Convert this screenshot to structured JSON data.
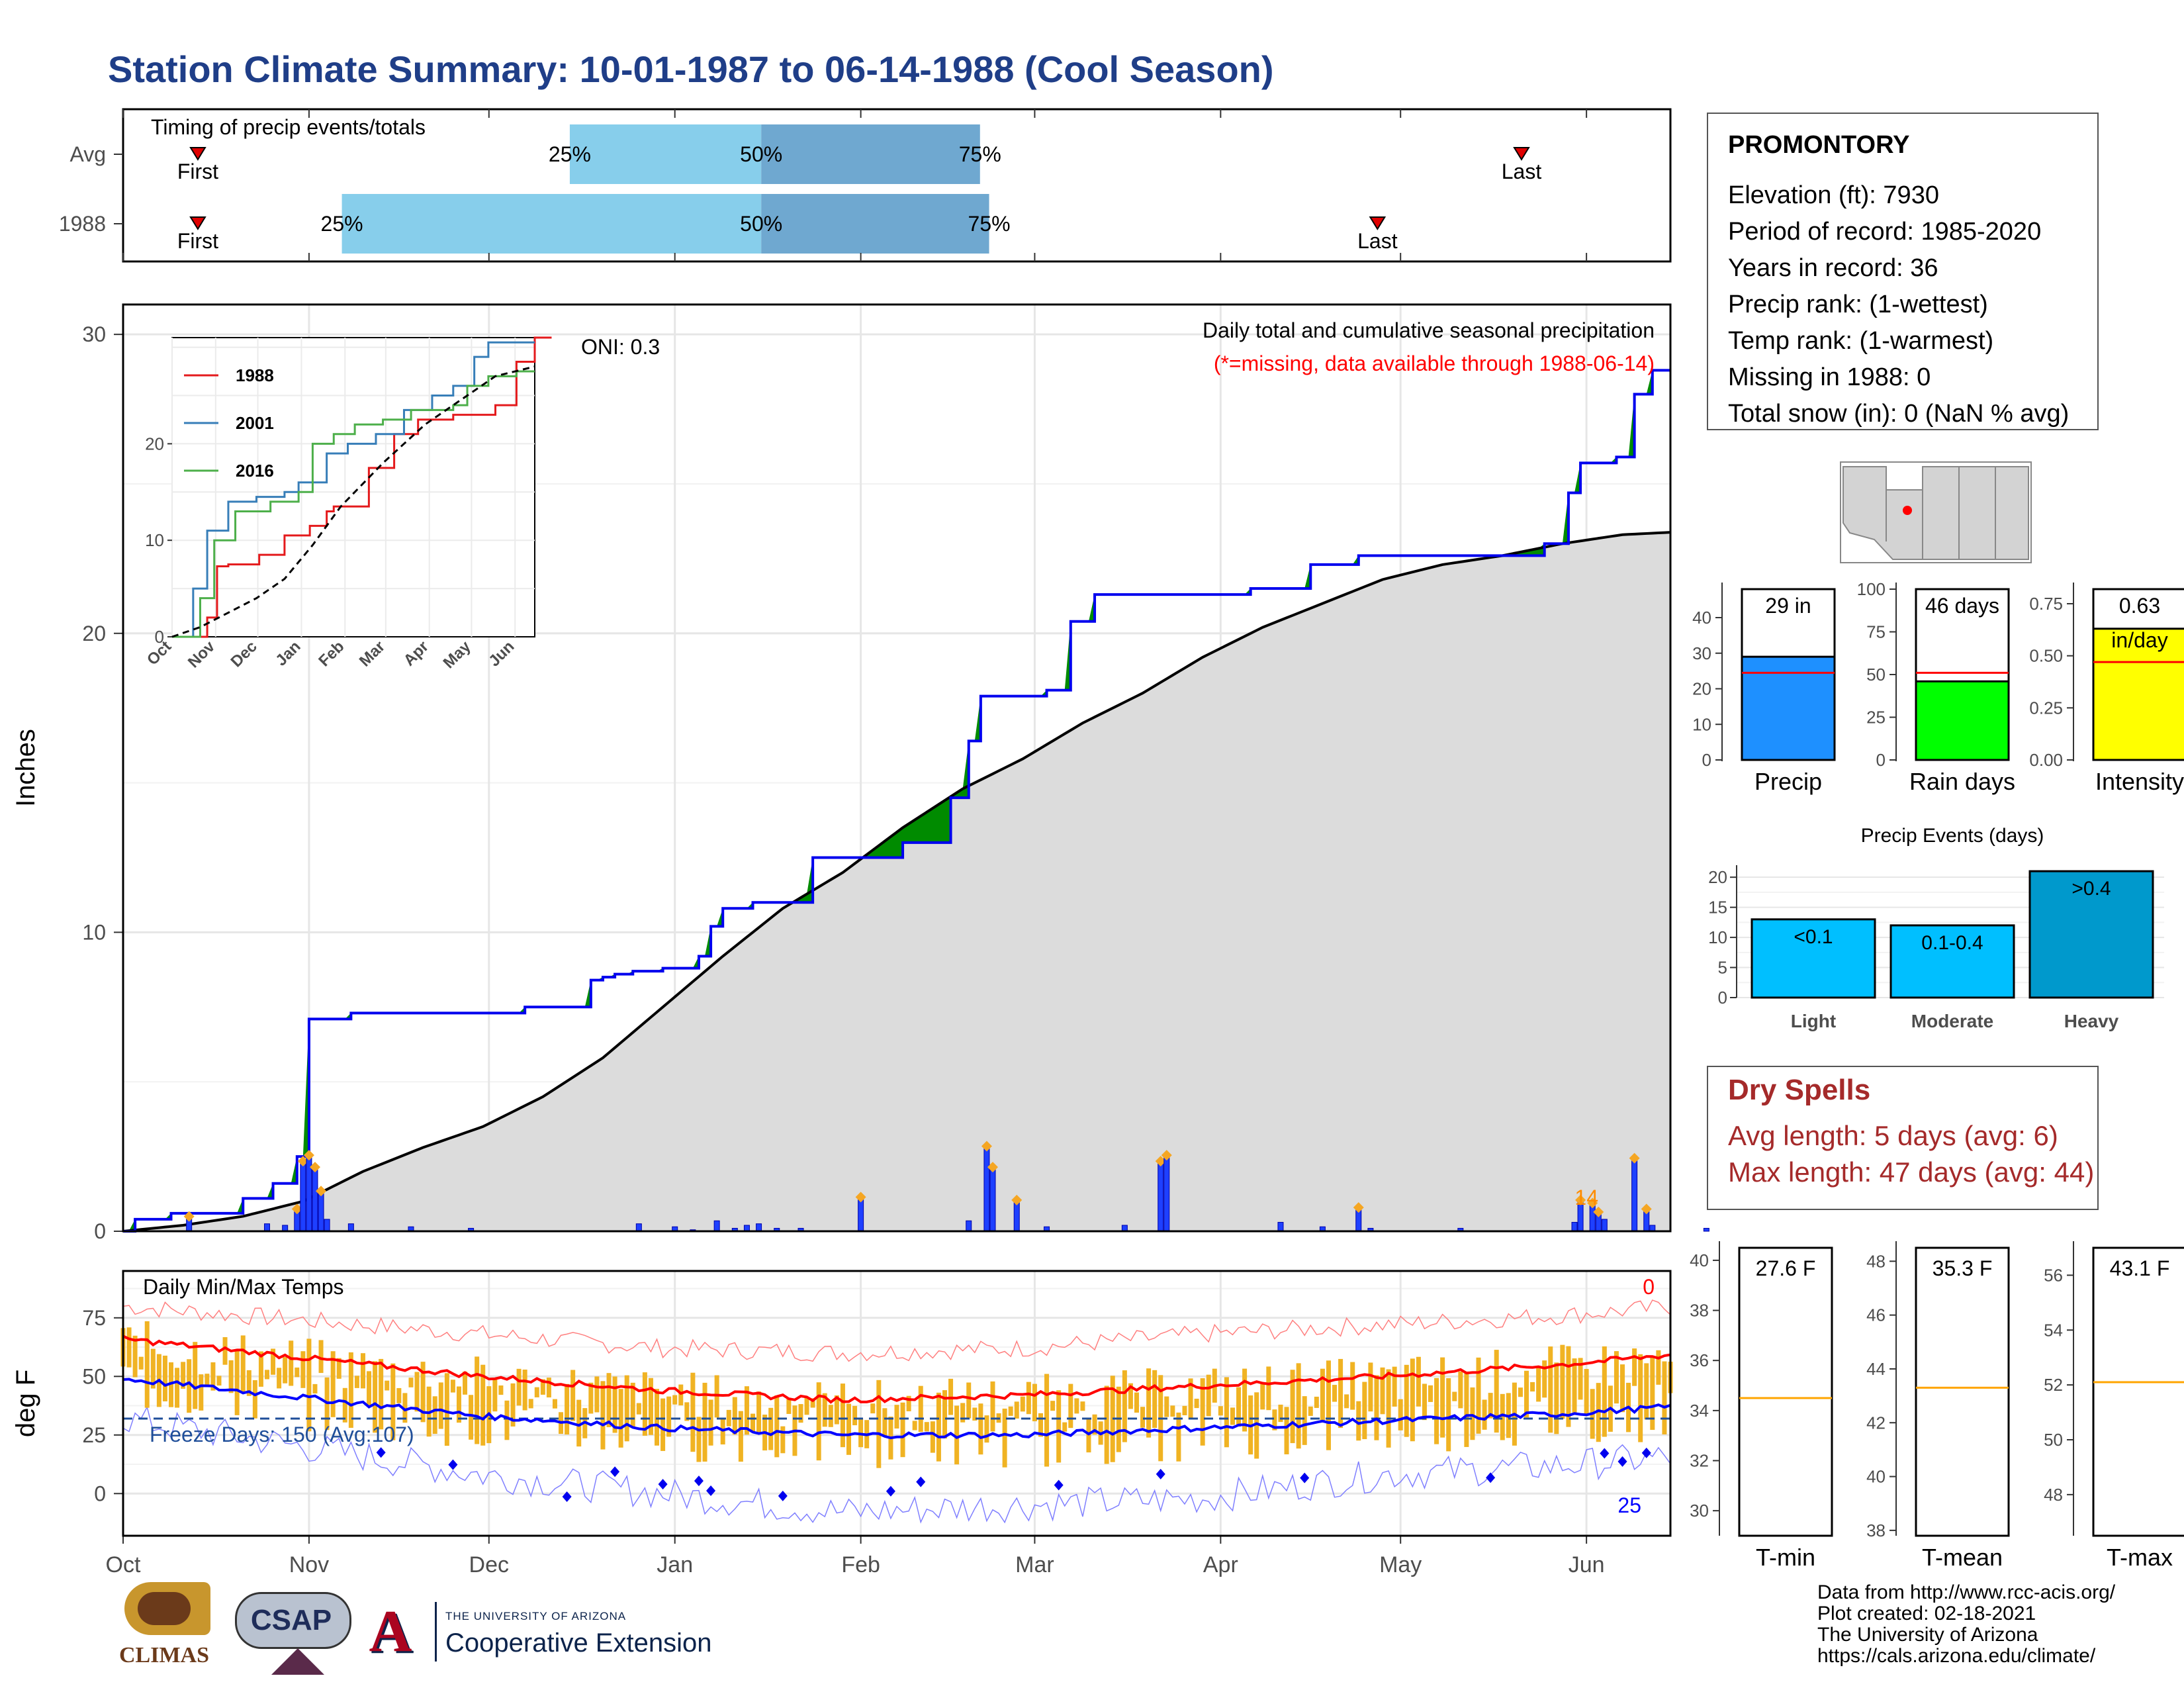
{
  "title": "Station Climate Summary: 10-01-1987 to 06-14-1988 (Cool Season)",
  "timing": {
    "label": "Timing of precip events/totals",
    "rows": [
      {
        "name": "Avg",
        "first_month": 0.41,
        "last_month": 7.67,
        "p25": 2.45,
        "p50": 3.5,
        "p75": 4.7
      },
      {
        "name": "1988",
        "first_month": 0.41,
        "last_month": 6.88,
        "p25": 1.2,
        "p50": 3.5,
        "p75": 4.75
      }
    ],
    "first_label": "First",
    "last_label": "Last",
    "p25_label": "25%",
    "p50_label": "50%",
    "p75_label": "75%"
  },
  "station": {
    "name": "PROMONTORY",
    "lines": [
      "Elevation (ft): 7930",
      "Period of record: 1985-2020",
      "Years in record: 36",
      "Precip rank:  (1-wettest)",
      "Temp rank:  (1-warmest)",
      "Missing in 1988: 0",
      "Total snow (in): 0 (NaN % avg)"
    ]
  },
  "map_marker_color": "#ff0000",
  "summary_bars": [
    {
      "label": "Precip",
      "value": 29,
      "avg": 24.5,
      "value_text": "29 in",
      "ymax": 48,
      "ticks": [
        0,
        10,
        20,
        30,
        40
      ],
      "color": "#1e90ff"
    },
    {
      "label": "Rain days",
      "value": 46,
      "avg": 51,
      "value_text": "46 days",
      "ymax": 100,
      "ticks": [
        0,
        25,
        50,
        75,
        100
      ],
      "color": "#00ff00"
    },
    {
      "label": "Intensity",
      "value": 0.63,
      "avg": 0.47,
      "value_text": "0.63\nin/day",
      "ymax": 0.82,
      "ticks": [
        "0.00",
        "0.25",
        "0.50",
        "0.75"
      ],
      "color": "#ffff00"
    }
  ],
  "events": {
    "title": "Precip Events (days)",
    "categories": [
      "Light",
      "Moderate",
      "Heavy"
    ],
    "values": [
      13,
      12,
      21
    ],
    "bar_labels": [
      "<0.1",
      "0.1-0.4",
      ">0.4"
    ],
    "ticks": [
      0,
      5,
      10,
      15,
      20
    ]
  },
  "dry_spells": {
    "title": "Dry Spells",
    "avg_line": "Avg length: 5 days (avg: 6)",
    "max_line": "Max length: 47 days (avg: 44)"
  },
  "temp_summary": [
    {
      "label": "T-min",
      "value_text": "27.6 F",
      "avg": 34.5,
      "ticks": [
        30,
        32,
        34,
        36,
        38,
        40
      ],
      "ymin": 29,
      "ymax": 40.5
    },
    {
      "label": "T-mean",
      "value_text": "35.3 F",
      "avg": 43.3,
      "ticks": [
        38,
        40,
        42,
        44,
        46,
        48
      ],
      "ymin": 37.8,
      "ymax": 48.5
    },
    {
      "label": "T-max",
      "value_text": "43.1 F",
      "avg": 52.1,
      "ticks": [
        48,
        50,
        52,
        54,
        56
      ],
      "ymin": 46.5,
      "ymax": 57
    }
  ],
  "chart_data": {
    "type": "area",
    "title": "Daily total and cumulative seasonal precipitation",
    "subtitle": "(*=missing, data available through 1988-06-14)",
    "ylabel": "Inches",
    "ylim": [
      0,
      31
    ],
    "ticks": [
      0,
      10,
      20,
      30
    ],
    "months": [
      "Oct",
      "Nov",
      "Dec",
      "Jan",
      "Feb",
      "Mar",
      "Apr",
      "May",
      "Jun"
    ],
    "oni": "ONI: 0.3",
    "heavy_count": "14",
    "cumulative_1988": [
      [
        0,
        0
      ],
      [
        2,
        0.4
      ],
      [
        8,
        0.6
      ],
      [
        20,
        1.1
      ],
      [
        25,
        1.6
      ],
      [
        29,
        2.5
      ],
      [
        31,
        7.1
      ],
      [
        35,
        7.1
      ],
      [
        38,
        7.3
      ],
      [
        62,
        7.3
      ],
      [
        67,
        7.5
      ],
      [
        78,
        8.4
      ],
      [
        80,
        8.5
      ],
      [
        82,
        8.6
      ],
      [
        85,
        8.7
      ],
      [
        90,
        8.8
      ],
      [
        96,
        9.2
      ],
      [
        98,
        10.2
      ],
      [
        100,
        10.8
      ],
      [
        105,
        11.0
      ],
      [
        113,
        11.0
      ],
      [
        115,
        12.5
      ],
      [
        123,
        12.5
      ],
      [
        130,
        13.0
      ],
      [
        138,
        14.5
      ],
      [
        141,
        16.4
      ],
      [
        143,
        17.9
      ],
      [
        154,
        18.1
      ],
      [
        158,
        20.4
      ],
      [
        162,
        21.3
      ],
      [
        185,
        21.3
      ],
      [
        188,
        21.5
      ],
      [
        195,
        21.5
      ],
      [
        198,
        22.3
      ],
      [
        206,
        22.6
      ],
      [
        235,
        22.6
      ],
      [
        237,
        23.0
      ],
      [
        241,
        24.7
      ],
      [
        243,
        25.7
      ],
      [
        249,
        25.9
      ],
      [
        252,
        28.0
      ],
      [
        255,
        28.8
      ],
      [
        300,
        29.0
      ],
      [
        335,
        29.0
      ]
    ],
    "cumulative_avg": [
      [
        0,
        0
      ],
      [
        10,
        0.2
      ],
      [
        20,
        0.5
      ],
      [
        30,
        1.0
      ],
      [
        40,
        2.0
      ],
      [
        50,
        2.8
      ],
      [
        60,
        3.5
      ],
      [
        70,
        4.5
      ],
      [
        80,
        5.8
      ],
      [
        90,
        7.5
      ],
      [
        100,
        9.2
      ],
      [
        110,
        10.8
      ],
      [
        120,
        12.0
      ],
      [
        130,
        13.5
      ],
      [
        140,
        14.8
      ],
      [
        150,
        15.8
      ],
      [
        160,
        17.0
      ],
      [
        170,
        18.0
      ],
      [
        180,
        19.2
      ],
      [
        190,
        20.2
      ],
      [
        200,
        21.0
      ],
      [
        210,
        21.8
      ],
      [
        220,
        22.3
      ],
      [
        230,
        22.6
      ],
      [
        240,
        23.0
      ],
      [
        250,
        23.3
      ],
      [
        260,
        23.4
      ],
      [
        270,
        23.6
      ],
      [
        280,
        23.8
      ],
      [
        290,
        24.0
      ],
      [
        300,
        24.1
      ],
      [
        335,
        24.3
      ]
    ],
    "daily_precip": [
      [
        11,
        0.45
      ],
      [
        24,
        0.25
      ],
      [
        27,
        0.2
      ],
      [
        29,
        0.7
      ],
      [
        30,
        2.3
      ],
      [
        31,
        2.5
      ],
      [
        32,
        2.1
      ],
      [
        33,
        1.3
      ],
      [
        34,
        0.4
      ],
      [
        38,
        0.25
      ],
      [
        48,
        0.15
      ],
      [
        58,
        0.1
      ],
      [
        86,
        0.25
      ],
      [
        92,
        0.15
      ],
      [
        95,
        0.05
      ],
      [
        99,
        0.35
      ],
      [
        102,
        0.1
      ],
      [
        104,
        0.2
      ],
      [
        106,
        0.25
      ],
      [
        109,
        0.1
      ],
      [
        113,
        0.1
      ],
      [
        123,
        1.1
      ],
      [
        141,
        0.35
      ],
      [
        144,
        2.8
      ],
      [
        145,
        2.1
      ],
      [
        149,
        1.0
      ],
      [
        154,
        0.15
      ],
      [
        167,
        0.2
      ],
      [
        173,
        2.3
      ],
      [
        174,
        2.5
      ],
      [
        193,
        0.3
      ],
      [
        200,
        0.15
      ],
      [
        206,
        0.75
      ],
      [
        208,
        0.1
      ],
      [
        223,
        0.1
      ],
      [
        242,
        0.3
      ],
      [
        243,
        1.0
      ],
      [
        245,
        0.9
      ],
      [
        246,
        0.6
      ],
      [
        247,
        0.4
      ],
      [
        252,
        2.4
      ],
      [
        254,
        0.7
      ],
      [
        255,
        0.2
      ],
      [
        264,
        0.1
      ]
    ],
    "inset": {
      "ylim": [
        0,
        31
      ],
      "ticks": [
        0,
        10,
        20
      ],
      "months": [
        "Oct",
        "Nov",
        "Dec",
        "Jan",
        "Feb",
        "Mar",
        "Apr",
        "May",
        "Jun"
      ],
      "series": [
        {
          "name": "1988",
          "color": "#e41a1c",
          "values": [
            [
              0,
              0
            ],
            [
              25,
              2
            ],
            [
              32,
              7.3
            ],
            [
              40,
              7.5
            ],
            [
              62,
              8.5
            ],
            [
              80,
              10.5
            ],
            [
              98,
              11.5
            ],
            [
              110,
              13
            ],
            [
              115,
              13.5
            ],
            [
              140,
              17.5
            ],
            [
              158,
              21
            ],
            [
              175,
              22.5
            ],
            [
              200,
              23
            ],
            [
              230,
              24
            ],
            [
              245,
              28.5
            ],
            [
              258,
              31
            ],
            [
              270,
              31
            ]
          ]
        },
        {
          "name": "2001",
          "color": "#377eb8",
          "values": [
            [
              0,
              0
            ],
            [
              15,
              5
            ],
            [
              25,
              11
            ],
            [
              40,
              14
            ],
            [
              60,
              14.5
            ],
            [
              80,
              15
            ],
            [
              90,
              16
            ],
            [
              110,
              19
            ],
            [
              125,
              20
            ],
            [
              145,
              21
            ],
            [
              165,
              23.5
            ],
            [
              185,
              25
            ],
            [
              200,
              26
            ],
            [
              215,
              29
            ],
            [
              225,
              30.5
            ],
            [
              258,
              30.5
            ]
          ]
        },
        {
          "name": "2016",
          "color": "#4daf4a",
          "values": [
            [
              0,
              0
            ],
            [
              20,
              4
            ],
            [
              30,
              10
            ],
            [
              45,
              13
            ],
            [
              70,
              14
            ],
            [
              90,
              15
            ],
            [
              100,
              20
            ],
            [
              115,
              21
            ],
            [
              130,
              22
            ],
            [
              150,
              22.5
            ],
            [
              170,
              23.5
            ],
            [
              200,
              24
            ],
            [
              210,
              26
            ],
            [
              225,
              27
            ],
            [
              245,
              27.5
            ],
            [
              258,
              27.5
            ]
          ]
        },
        {
          "name": "avg",
          "color": "#000000",
          "values": [
            [
              0,
              0
            ],
            [
              20,
              1
            ],
            [
              40,
              2.5
            ],
            [
              60,
              4
            ],
            [
              80,
              6
            ],
            [
              100,
              9.5
            ],
            [
              120,
              13.5
            ],
            [
              150,
              18
            ],
            [
              180,
              22
            ],
            [
              210,
              25
            ],
            [
              230,
              27
            ],
            [
              258,
              28
            ]
          ]
        }
      ]
    },
    "temps": {
      "label": "Daily Min/Max Temps",
      "ylabel": "deg F",
      "ylim": [
        -18,
        95
      ],
      "ticks": [
        0,
        25,
        50,
        75
      ],
      "freeze_line": 32,
      "freeze_text": "Freeze Days: 150 (Avg:107)",
      "count_top": "0",
      "count_bottom": "25",
      "avg_max": [
        [
          0,
          66
        ],
        [
          30,
          58
        ],
        [
          60,
          50
        ],
        [
          90,
          44
        ],
        [
          120,
          40
        ],
        [
          150,
          42
        ],
        [
          180,
          46
        ],
        [
          210,
          50
        ],
        [
          240,
          55
        ],
        [
          270,
          62
        ],
        [
          300,
          68
        ],
        [
          335,
          74
        ]
      ],
      "avg_min": [
        [
          0,
          49
        ],
        [
          30,
          41
        ],
        [
          60,
          33
        ],
        [
          90,
          28
        ],
        [
          120,
          25
        ],
        [
          150,
          25
        ],
        [
          180,
          28
        ],
        [
          210,
          31
        ],
        [
          240,
          34
        ],
        [
          270,
          39
        ],
        [
          300,
          45
        ],
        [
          335,
          51
        ]
      ],
      "record_max": [
        [
          0,
          80
        ],
        [
          30,
          74
        ],
        [
          60,
          68
        ],
        [
          90,
          62
        ],
        [
          120,
          60
        ],
        [
          150,
          62
        ],
        [
          180,
          68
        ],
        [
          210,
          72
        ],
        [
          240,
          76
        ],
        [
          270,
          82
        ],
        [
          300,
          86
        ],
        [
          335,
          90
        ]
      ],
      "record_min": [
        [
          0,
          32
        ],
        [
          30,
          20
        ],
        [
          60,
          8
        ],
        [
          90,
          0
        ],
        [
          120,
          -8
        ],
        [
          150,
          -5
        ],
        [
          180,
          -2
        ],
        [
          210,
          8
        ],
        [
          240,
          12
        ],
        [
          270,
          18
        ],
        [
          300,
          25
        ],
        [
          335,
          30
        ]
      ]
    }
  },
  "footer": {
    "lines": [
      "Data from http://www.rcc-acis.org/",
      "Plot created: 02-18-2021",
      "The University of Arizona",
      "https://cals.arizona.edu/climate/"
    ]
  },
  "logos": {
    "climas": "CLIMAS",
    "csap": "CSAP",
    "ua_small": "THE UNIVERSITY OF ARIZONA",
    "ua_big": "Cooperative Extension"
  }
}
